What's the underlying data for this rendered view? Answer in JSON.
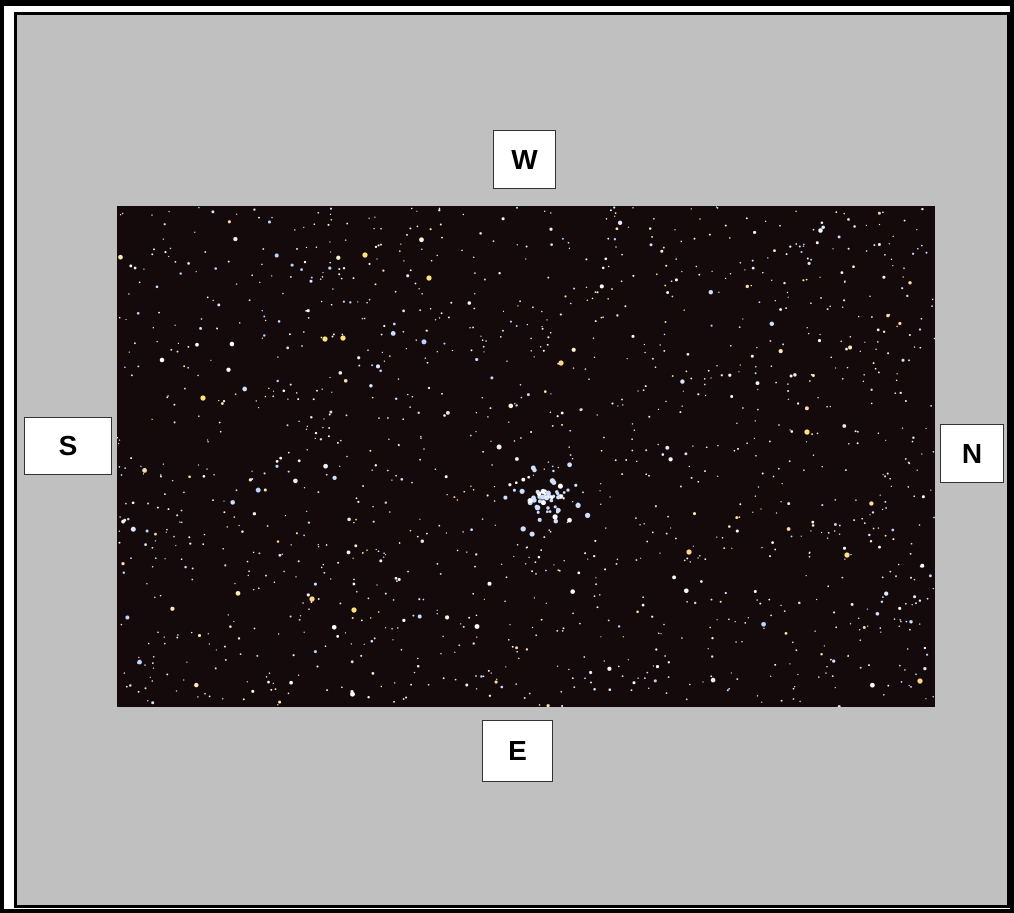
{
  "compass": {
    "west": "W",
    "south": "S",
    "north": "N",
    "east": "E"
  },
  "image": {
    "subject": "star-field-with-central-open-cluster",
    "background_color": "#140a0c"
  },
  "colors": {
    "panel": "#c0c0c0",
    "border": "#000000",
    "label_box": "#ffffff"
  }
}
